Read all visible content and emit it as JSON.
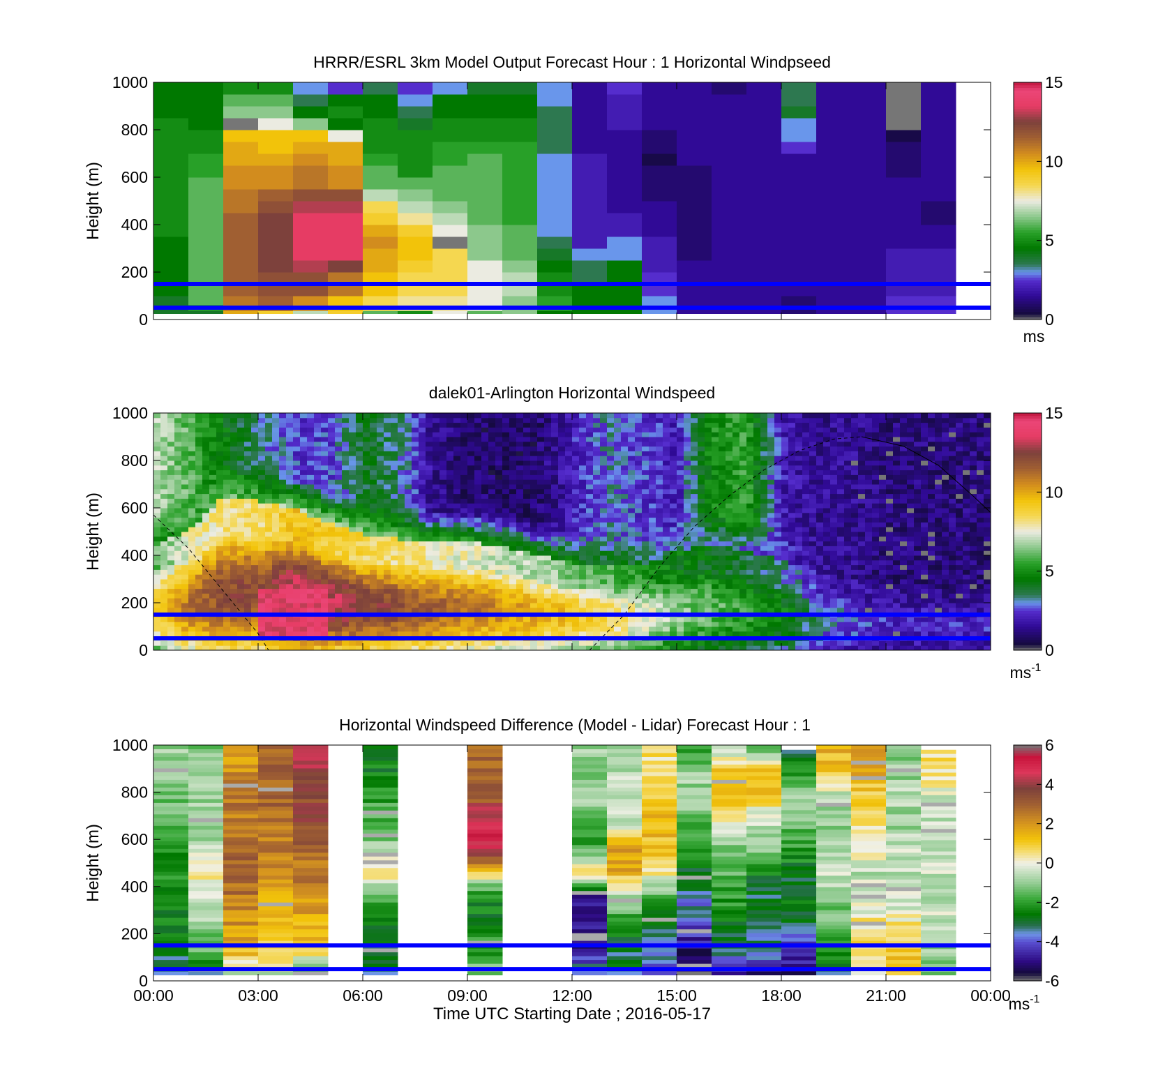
{
  "figure": {
    "xlabel": "Time UTC  Starting Date ; 2016-05-17",
    "x_tick_labels": [
      "00:00",
      "03:00",
      "06:00",
      "09:00",
      "12:00",
      "15:00",
      "18:00",
      "21:00",
      "00:00"
    ],
    "reference_lines_m": [
      50,
      150
    ],
    "reference_line_color": "#0000ff"
  },
  "chart_data": [
    {
      "type": "heatmap",
      "title": "HRRR/ESRL 3km Model Output   Forecast Hour : 1 Horizontal Windpseed",
      "ylabel": "Height (m)",
      "ylim": [
        0,
        1000
      ],
      "y_ticks": [
        0,
        200,
        400,
        600,
        800,
        1000
      ],
      "xlim_hours": [
        0,
        24
      ],
      "colorbar": {
        "min": 0,
        "max": 15,
        "ticks": [
          0,
          5,
          10,
          15
        ],
        "unit": "ms"
      },
      "time_hours": [
        0.5,
        1.5,
        2.5,
        3.5,
        4.5,
        5.5,
        6.5,
        7.5,
        8.5,
        9.5,
        10.5,
        11.5,
        12.5,
        13.5,
        14.5,
        15.5,
        16.5,
        17.5,
        18.5,
        19.5,
        20.5,
        21.5,
        22.5
      ],
      "heights_m": [
        25,
        50,
        75,
        125,
        175,
        225,
        275,
        325,
        375,
        425,
        475,
        525,
        575,
        625,
        675,
        725,
        775,
        825,
        875,
        925,
        975
      ],
      "values_ms_per_time": [
        [
          4,
          4,
          4,
          4.5,
          4.5,
          4.5,
          4.5,
          4.5,
          5,
          5,
          5,
          5,
          5,
          5,
          5,
          5,
          5,
          5,
          4.5,
          4.5,
          4.5
        ],
        [
          4,
          5.5,
          6,
          6,
          6,
          6,
          6,
          6,
          6,
          6,
          6,
          6,
          6,
          5.5,
          5.5,
          5,
          5,
          4.5,
          4.5,
          4.5,
          4.5
        ],
        [
          10,
          11,
          11,
          11.5,
          11.5,
          11.5,
          11.5,
          11.5,
          11.5,
          11.5,
          11,
          11,
          10.5,
          10.5,
          10,
          10,
          9.5,
          0,
          6.5,
          6,
          5
        ],
        [
          9,
          11.5,
          11.5,
          12,
          12,
          12.5,
          12.5,
          12.5,
          12.5,
          12.5,
          12,
          11.5,
          10.5,
          10.5,
          10,
          9.5,
          9.5,
          7.5,
          6.5,
          6,
          5
        ],
        [
          7,
          10.5,
          10.5,
          12,
          12,
          13,
          13.5,
          13.5,
          13.5,
          13.5,
          13,
          12,
          11,
          11,
          10.5,
          10,
          9.5,
          6.5,
          4.5,
          3.5,
          3
        ],
        [
          9,
          9.5,
          9.5,
          11,
          11,
          12.5,
          13.5,
          13.5,
          13.5,
          13.5,
          13,
          12,
          10.5,
          10.5,
          10,
          10,
          7.5,
          4.5,
          5,
          4.5,
          2.5
        ],
        [
          6,
          8.5,
          8.5,
          9.5,
          9.5,
          10,
          10,
          10.5,
          10,
          9,
          8.5,
          7,
          6,
          6,
          5.5,
          5,
          5,
          5,
          4.5,
          4.5,
          3.5
        ],
        [
          5,
          8,
          8,
          8.5,
          8.5,
          9,
          9.5,
          9.5,
          9,
          8,
          7,
          6.5,
          6,
          5,
          5,
          5,
          5,
          4,
          3.5,
          3,
          2.5
        ],
        [
          7.5,
          8,
          8,
          8.5,
          8.5,
          8.5,
          8.5,
          0,
          7.5,
          7,
          6.5,
          6,
          6,
          6,
          5.5,
          5.5,
          5,
          5,
          4.5,
          4.5,
          3
        ],
        [
          6,
          7.5,
          7.5,
          7.5,
          7.5,
          7.5,
          6.5,
          6.5,
          6.5,
          6,
          6,
          6,
          6,
          6,
          6,
          5.5,
          5,
          5,
          4.5,
          4.5,
          4
        ],
        [
          6.5,
          6.5,
          6.5,
          7,
          7,
          6.5,
          6,
          6,
          6,
          5.5,
          5.5,
          5.5,
          5.5,
          5.5,
          5.5,
          5.5,
          5,
          5,
          4.5,
          4.5,
          4
        ],
        [
          4.5,
          5.5,
          5.5,
          5,
          5,
          4.5,
          4,
          3.5,
          3,
          3,
          3,
          3,
          3,
          3,
          3,
          3.5,
          3.5,
          3.5,
          3.5,
          3,
          3
        ],
        [
          4.5,
          4.5,
          4.5,
          4.5,
          3.5,
          3.5,
          3,
          2,
          2,
          2,
          2,
          2,
          2,
          2,
          2,
          1.5,
          1.5,
          1.5,
          1.5,
          1.5,
          1.5
        ],
        [
          4.5,
          4.5,
          4.5,
          4.5,
          4.5,
          4.5,
          3,
          3,
          2,
          2,
          1.5,
          1.5,
          1.5,
          1.5,
          1.5,
          1.5,
          1.5,
          2,
          2,
          2,
          2.5
        ],
        [
          3,
          3,
          3,
          2.5,
          2.5,
          2,
          2,
          2,
          1.5,
          1.5,
          1.5,
          1,
          1,
          1,
          0.5,
          1,
          1,
          1.5,
          1.5,
          1.5,
          1.5
        ],
        [
          1.5,
          1.5,
          1.5,
          1.5,
          1.5,
          1.5,
          1,
          1,
          1,
          1,
          1,
          1,
          1,
          1,
          1.5,
          1.5,
          1.5,
          1.5,
          1.5,
          1.5,
          1.5
        ],
        [
          1.5,
          1.5,
          1.5,
          1.5,
          1.5,
          1.5,
          1.5,
          1.5,
          1.5,
          1.5,
          1.5,
          1.5,
          1.5,
          1.5,
          1.5,
          1.5,
          1.5,
          1.5,
          1.5,
          1.5,
          1
        ],
        [
          1.5,
          1.5,
          1.5,
          1.5,
          1.5,
          1.5,
          1.5,
          1.5,
          1.5,
          1.5,
          1.5,
          1.5,
          1.5,
          1.5,
          1.5,
          1.5,
          1.5,
          1.5,
          1.5,
          1.5,
          1.5
        ],
        [
          1,
          1,
          1,
          1.5,
          1.5,
          1.5,
          1.5,
          1.5,
          1.5,
          1.5,
          1.5,
          1.5,
          1.5,
          1.5,
          1.5,
          2.5,
          3,
          3,
          4,
          3.5,
          3.5
        ],
        [
          1.5,
          1.5,
          1.5,
          1.5,
          1.5,
          1.5,
          1.5,
          1.5,
          1.5,
          1.5,
          1.5,
          1.5,
          1.5,
          1.5,
          1.5,
          1.5,
          1.5,
          1.5,
          1.5,
          1.5,
          1.5
        ],
        [
          1.5,
          1.5,
          1.5,
          1.5,
          1.5,
          1.5,
          1.5,
          1.5,
          1.5,
          1.5,
          1.5,
          1.5,
          1.5,
          1.5,
          1.5,
          1.5,
          1.5,
          1.5,
          1.5,
          1.5,
          1.5
        ],
        [
          2.5,
          2.5,
          2.5,
          2,
          2,
          2,
          2,
          1.5,
          1.5,
          1.5,
          1.5,
          1.5,
          1.5,
          1,
          1,
          1,
          0.5,
          0,
          0,
          0,
          0
        ],
        [
          2.5,
          2.5,
          2.5,
          2,
          2,
          2,
          2,
          1.5,
          1.5,
          1,
          1,
          1.5,
          1.5,
          1.5,
          1.5,
          1.5,
          1.5,
          1.5,
          1.5,
          1.5,
          1.5
        ]
      ]
    },
    {
      "type": "heatmap",
      "title": "dalek01-Arlington  Horizontal Windspeed",
      "ylabel": "Height (m)",
      "ylim": [
        0,
        1000
      ],
      "y_ticks": [
        0,
        200,
        400,
        600,
        800,
        1000
      ],
      "xlim_hours": [
        0,
        24
      ],
      "colorbar": {
        "min": 0,
        "max": 15,
        "ticks": [
          0,
          5,
          10,
          15
        ],
        "unit": "ms",
        "unit_superscript": "-1"
      },
      "field_description": {
        "times_h": [
          0,
          1,
          2,
          3,
          4,
          5,
          6,
          7,
          8,
          9,
          10,
          11,
          12,
          13,
          14,
          15,
          16,
          17,
          18,
          19,
          20,
          21,
          22,
          23,
          24
        ],
        "top_of_fast_layer_m": [
          450,
          500,
          650,
          630,
          600,
          540,
          490,
          470,
          450,
          460,
          440,
          400,
          370,
          350,
          360,
          420,
          450,
          420,
          380,
          330,
          300,
          280,
          270,
          260,
          250
        ],
        "jet_core_ms": [
          8,
          10,
          11,
          11,
          12.5,
          12,
          11.5,
          11,
          10.5,
          10,
          9.5,
          9,
          8.5,
          8,
          7,
          6,
          5.5,
          5,
          4.5,
          3,
          2.5,
          2,
          2,
          2,
          2
        ],
        "upper_level_ms": [
          7,
          6,
          4.5,
          3.5,
          2.5,
          2.5,
          4,
          3.5,
          1.5,
          1,
          1,
          1,
          2,
          3,
          2.5,
          2,
          5,
          5.5,
          2,
          1.5,
          1.5,
          1.2,
          1.2,
          1.2,
          1.2
        ]
      },
      "overlay_lines": [
        {
          "style": "dashed",
          "points": [
            [
              0,
              570
            ],
            [
              1,
              430
            ],
            [
              2,
              250
            ],
            [
              3,
              70
            ],
            [
              3.3,
              0
            ]
          ]
        },
        {
          "style": "dashed",
          "points": [
            [
              12.5,
              0
            ],
            [
              13.5,
              150
            ],
            [
              14.5,
              350
            ],
            [
              15.5,
              520
            ],
            [
              16.5,
              650
            ],
            [
              17.5,
              760
            ],
            [
              18.5,
              840
            ],
            [
              19.5,
              890
            ],
            [
              20.3,
              900
            ]
          ]
        },
        {
          "style": "solid",
          "points": [
            [
              20.3,
              900
            ],
            [
              21.5,
              860
            ],
            [
              22.5,
              780
            ],
            [
              23.5,
              650
            ],
            [
              24,
              580
            ]
          ]
        }
      ]
    },
    {
      "type": "heatmap",
      "title": "Horizontal Windspeed Difference (Model - Lidar) Forecast Hour : 1",
      "ylabel": "Height (m)",
      "ylim": [
        0,
        1000
      ],
      "y_ticks": [
        0,
        200,
        400,
        600,
        800,
        1000
      ],
      "xlim_hours": [
        0,
        24
      ],
      "colorbar": {
        "min": -6,
        "max": 6,
        "ticks": [
          -6,
          -4,
          -2,
          0,
          2,
          4,
          6
        ],
        "unit": "ms",
        "unit_superscript": "-1"
      },
      "time_hours": [
        0.5,
        1.5,
        2.5,
        3.5,
        4.5,
        6.5,
        9.5,
        12.5,
        13.5,
        14.5,
        15.5,
        16.5,
        17.5,
        18.5,
        19.5,
        20.5,
        21.5,
        22.5
      ],
      "height_ranges_m": [
        [
          25,
          1000
        ],
        [
          25,
          1000
        ],
        [
          25,
          1000
        ],
        [
          25,
          1000
        ],
        [
          25,
          1000
        ],
        [
          25,
          1000
        ],
        [
          25,
          1000
        ],
        [
          25,
          1000
        ],
        [
          25,
          1000
        ],
        [
          25,
          1000
        ],
        [
          25,
          1000
        ],
        [
          25,
          1000
        ],
        [
          25,
          1000
        ],
        [
          25,
          980
        ],
        [
          25,
          1000
        ],
        [
          25,
          1000
        ],
        [
          25,
          1000
        ],
        [
          25,
          980
        ]
      ],
      "profiles_diff_ms": [
        [
          -3,
          -3,
          -2.5,
          -2.5,
          -2,
          -2,
          -1.5,
          -1.5,
          -1,
          -1
        ],
        [
          -3,
          -1.5,
          -1,
          -0.5,
          0.5,
          -0.5,
          -1,
          -1,
          -1,
          -1.5
        ],
        [
          -0.5,
          1.5,
          2,
          2.5,
          3,
          3,
          2.5,
          2.5,
          2,
          2
        ],
        [
          -0.5,
          1,
          1.5,
          1.5,
          2,
          2.5,
          2.5,
          3,
          3,
          3
        ],
        [
          -3,
          1,
          1.5,
          2,
          2.5,
          3,
          3.5,
          3.5,
          4,
          4
        ],
        [
          -3,
          -3,
          -2.5,
          -2,
          0.5,
          -1,
          -1.5,
          -2,
          -2.5,
          -3
        ],
        [
          -1,
          -2,
          -2.5,
          -2.5,
          0.5,
          5,
          5,
          3,
          3,
          3
        ],
        [
          -3,
          -5,
          -5,
          -5,
          0.5,
          -2,
          -1.5,
          -1,
          -1,
          -1
        ],
        [
          -3,
          -3,
          -2,
          -1,
          1.5,
          2,
          -0.5,
          -1,
          -0.5,
          -1
        ],
        [
          -3.5,
          -4,
          -3,
          -2,
          0.5,
          1,
          1.5,
          0.5,
          0.5,
          0.5
        ],
        [
          -5.5,
          -5,
          -4,
          -3.5,
          -3,
          -2,
          -1.5,
          -1,
          -1,
          -2
        ],
        [
          -4.5,
          -3,
          -2.5,
          -2,
          -1.5,
          -1,
          0.5,
          1,
          1,
          -1
        ],
        [
          -5,
          -3,
          -3.5,
          -3,
          -2.5,
          -1,
          -0.5,
          1,
          1.5,
          -2.5
        ],
        [
          -5,
          -4.5,
          -3,
          -2.5,
          -3,
          -2,
          -1.5,
          -1,
          -2,
          -3
        ],
        [
          -3,
          -2,
          -1.5,
          -1,
          -0.5,
          -1,
          -1,
          -0.5,
          1,
          1.5
        ],
        [
          0.5,
          0.5,
          0.5,
          -0.5,
          -0.5,
          0.5,
          0.5,
          1,
          1.5,
          2
        ],
        [
          1.5,
          1,
          0.5,
          -0.5,
          -0.5,
          -0.5,
          -1,
          -0.5,
          -1,
          -1
        ],
        [
          -1,
          -1,
          -0.5,
          -0.5,
          -0.5,
          -0.5,
          -0.5,
          -0.5,
          0.5,
          0.5
        ]
      ]
    }
  ]
}
